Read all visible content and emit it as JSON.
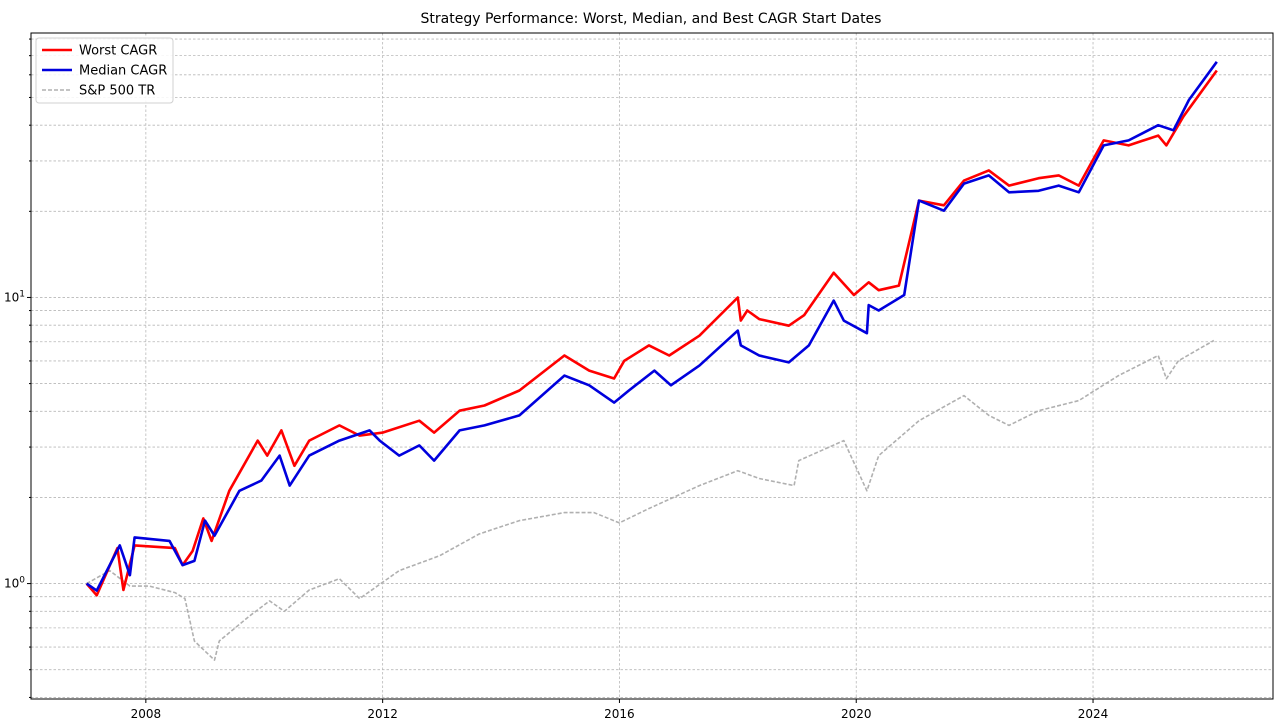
{
  "chart_data": {
    "type": "line",
    "title": "Strategy Performance: Worst, Median, and Best CAGR Start Dates",
    "xlabel": "",
    "ylabel": "",
    "yscale": "log",
    "xlim": [
      2006.06,
      2027.04
    ],
    "ylim": [
      0.395,
      84
    ],
    "grid": true,
    "legend_position": "top-left",
    "x_ticks": [
      2008,
      2012,
      2016,
      2020,
      2024
    ],
    "x_tick_labels": [
      "2008",
      "2012",
      "2016",
      "2020",
      "2024"
    ],
    "y_ticks": [
      1,
      10
    ],
    "y_tick_labels": [
      {
        "base": "10",
        "exp": "0"
      },
      {
        "base": "10",
        "exp": "1"
      }
    ],
    "series": [
      {
        "name": "Worst CAGR",
        "color": "#ff0000",
        "style": "solid",
        "x": [
          2007.0,
          2007.17,
          2007.52,
          2007.62,
          2007.81,
          2008.49,
          2008.62,
          2008.79,
          2008.97,
          2009.11,
          2009.41,
          2009.89,
          2010.05,
          2010.29,
          2010.51,
          2010.76,
          2011.27,
          2011.61,
          2012.0,
          2012.62,
          2012.87,
          2013.3,
          2013.72,
          2014.31,
          2015.07,
          2015.49,
          2015.91,
          2016.08,
          2016.5,
          2016.84,
          2017.35,
          2018.0,
          2018.05,
          2018.16,
          2018.36,
          2018.86,
          2019.12,
          2019.62,
          2019.96,
          2020.21,
          2020.38,
          2020.72,
          2021.06,
          2021.48,
          2021.82,
          2022.24,
          2022.58,
          2023.08,
          2023.42,
          2023.76,
          2024.18,
          2024.6,
          2025.1,
          2025.24,
          2025.53,
          2026.09
        ],
        "y": [
          1.0,
          0.91,
          1.33,
          0.95,
          1.36,
          1.33,
          1.16,
          1.3,
          1.69,
          1.41,
          2.11,
          3.16,
          2.8,
          3.43,
          2.58,
          3.16,
          3.57,
          3.29,
          3.37,
          3.71,
          3.37,
          4.02,
          4.19,
          4.73,
          6.27,
          5.55,
          5.21,
          6.0,
          6.8,
          6.27,
          7.35,
          10.0,
          8.3,
          9.0,
          8.4,
          7.97,
          8.67,
          12.2,
          10.2,
          11.3,
          10.6,
          11.0,
          21.8,
          21.0,
          25.6,
          27.8,
          24.6,
          26.1,
          26.7,
          24.6,
          35.4,
          34.0,
          36.8,
          34.0,
          43.0,
          62.1
        ]
      },
      {
        "name": "Median CAGR",
        "color": "#0000dd",
        "style": "solid",
        "x": [
          2007.0,
          2007.17,
          2007.56,
          2007.73,
          2007.81,
          2008.4,
          2008.62,
          2008.82,
          2009.0,
          2009.16,
          2009.58,
          2009.95,
          2010.26,
          2010.43,
          2010.76,
          2011.27,
          2011.78,
          2011.95,
          2012.28,
          2012.62,
          2012.87,
          2013.3,
          2013.72,
          2014.31,
          2015.07,
          2015.49,
          2015.91,
          2016.16,
          2016.59,
          2016.87,
          2017.35,
          2018.0,
          2018.05,
          2018.36,
          2018.86,
          2019.2,
          2019.62,
          2019.79,
          2020.18,
          2020.21,
          2020.38,
          2020.81,
          2021.06,
          2021.48,
          2021.82,
          2022.24,
          2022.58,
          2023.08,
          2023.42,
          2023.76,
          2024.18,
          2024.6,
          2025.1,
          2025.36,
          2025.62,
          2026.09
        ],
        "y": [
          1.0,
          0.945,
          1.36,
          1.07,
          1.45,
          1.41,
          1.16,
          1.2,
          1.66,
          1.47,
          2.11,
          2.29,
          2.8,
          2.2,
          2.8,
          3.16,
          3.43,
          3.16,
          2.8,
          3.04,
          2.69,
          3.43,
          3.57,
          3.87,
          5.33,
          4.93,
          4.29,
          4.73,
          5.55,
          4.93,
          5.78,
          7.66,
          6.8,
          6.27,
          5.93,
          6.8,
          9.75,
          8.3,
          7.5,
          9.4,
          9.0,
          10.2,
          21.8,
          20.1,
          25.0,
          26.7,
          23.3,
          23.6,
          24.6,
          23.3,
          34.0,
          35.4,
          40.0,
          38.4,
          49.0,
          66.6
        ]
      },
      {
        "name": "S&P 500 TR",
        "color": "#b0b0b0",
        "style": "dashed",
        "x": [
          2007.0,
          2007.39,
          2007.73,
          2008.06,
          2008.49,
          2008.66,
          2008.82,
          2009.16,
          2009.24,
          2009.75,
          2010.09,
          2010.34,
          2010.76,
          2011.27,
          2011.61,
          2012.28,
          2012.96,
          2013.63,
          2014.31,
          2015.07,
          2015.57,
          2016.0,
          2016.5,
          2017.35,
          2018.0,
          2018.36,
          2018.95,
          2019.03,
          2019.79,
          2020.18,
          2020.38,
          2021.06,
          2021.82,
          2022.24,
          2022.58,
          2023.08,
          2023.76,
          2024.43,
          2025.1,
          2025.24,
          2025.44,
          2026.04
        ],
        "y": [
          1.0,
          1.11,
          0.98,
          0.98,
          0.93,
          0.886,
          0.63,
          0.54,
          0.63,
          0.77,
          0.87,
          0.8,
          0.95,
          1.04,
          0.886,
          1.11,
          1.25,
          1.49,
          1.66,
          1.77,
          1.77,
          1.63,
          1.83,
          2.2,
          2.48,
          2.33,
          2.2,
          2.69,
          3.16,
          2.11,
          2.8,
          3.71,
          4.54,
          3.87,
          3.57,
          4.02,
          4.36,
          5.33,
          6.27,
          5.2,
          6.0,
          7.07
        ]
      }
    ]
  }
}
